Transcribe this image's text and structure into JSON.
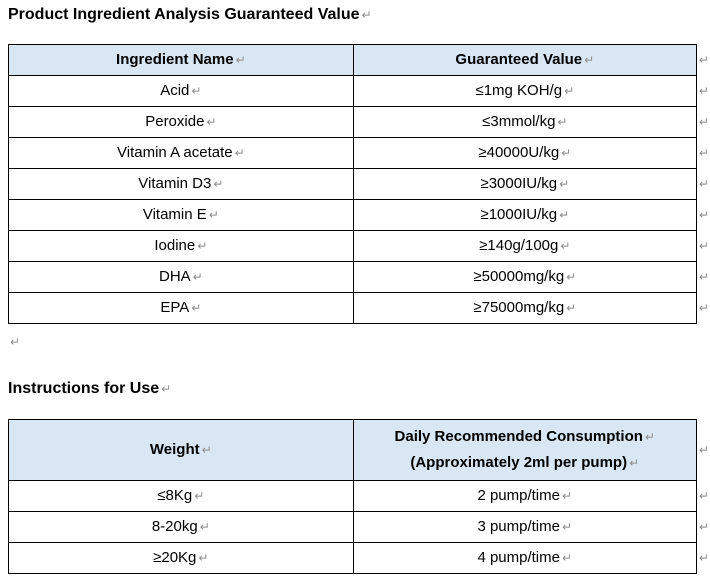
{
  "marks": {
    "return": "↵"
  },
  "colors": {
    "header_fill": "#d9e7f5",
    "table_border": "#000000",
    "formatting_mark": "#8c8c8c",
    "text": "#000000",
    "background": "#ffffff"
  },
  "section1": {
    "title": "Product Ingredient Analysis Guaranteed Value",
    "table": {
      "headers": [
        "Ingredient Name",
        "Guaranteed Value"
      ],
      "rows": [
        [
          "Acid",
          "≤1mg KOH/g"
        ],
        [
          "Peroxide",
          "≤3mmol/kg"
        ],
        [
          "Vitamin A acetate",
          "≥40000U/kg"
        ],
        [
          "Vitamin D3",
          "≥3000IU/kg"
        ],
        [
          "Vitamin E",
          "≥1000IU/kg"
        ],
        [
          "Iodine",
          "≥140g/100g"
        ],
        [
          "DHA",
          "≥50000mg/kg"
        ],
        [
          "EPA",
          "≥75000mg/kg"
        ]
      ]
    }
  },
  "section2": {
    "title": "Instructions for Use",
    "table": {
      "headers": [
        "Weight",
        "Daily Recommended Consumption",
        "(Approximately 2ml per pump)"
      ],
      "rows": [
        [
          "≤8Kg",
          "2 pump/time"
        ],
        [
          "8-20kg",
          "3 pump/time"
        ],
        [
          "≥20Kg",
          "4 pump/time"
        ]
      ]
    }
  }
}
